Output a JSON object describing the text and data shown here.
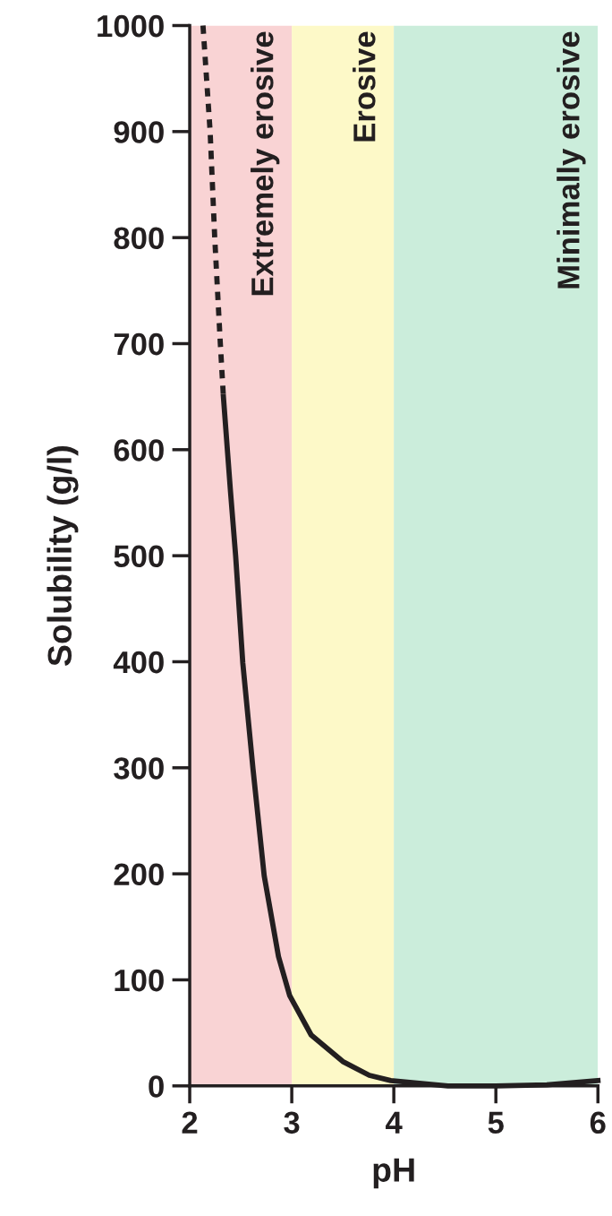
{
  "chart_data": {
    "type": "line",
    "xlabel": "pH",
    "ylabel": "Solubility (g/l)",
    "xlim": [
      2,
      6
    ],
    "ylim": [
      0,
      1000
    ],
    "xticks": [
      2,
      3,
      4,
      5,
      6
    ],
    "yticks": [
      0,
      100,
      200,
      300,
      400,
      500,
      600,
      700,
      800,
      900,
      1000
    ],
    "grid": false,
    "legend": false,
    "marker": "none",
    "series": [
      {
        "color": "#231f20",
        "line_style": "dotted",
        "x": [
          2.13,
          2.2,
          2.245,
          2.3,
          2.33
        ],
        "values": [
          1000,
          900,
          800,
          700,
          650
        ]
      },
      {
        "color": "#231f20",
        "line_style": "solid",
        "x": [
          2.33,
          2.4,
          2.45,
          2.52,
          2.62,
          2.73,
          2.87,
          2.98,
          3.19,
          3.5,
          3.76,
          3.97,
          4.53,
          5.0,
          5.5,
          6.0
        ],
        "values": [
          650,
          560,
          500,
          399,
          299,
          198,
          122,
          85,
          48,
          23,
          10,
          5,
          0,
          0,
          1,
          5
        ]
      }
    ],
    "bands": [
      {
        "axis": "x",
        "from": 2,
        "to": 3,
        "label": "Extremely erosive",
        "color": "#f9d3d4"
      },
      {
        "axis": "x",
        "from": 3,
        "to": 4,
        "label": "Erosive",
        "color": "#fdf9c8"
      },
      {
        "axis": "x",
        "from": 4,
        "to": 6,
        "label": "Minimally erosive",
        "color": "#cbeddb"
      }
    ]
  }
}
